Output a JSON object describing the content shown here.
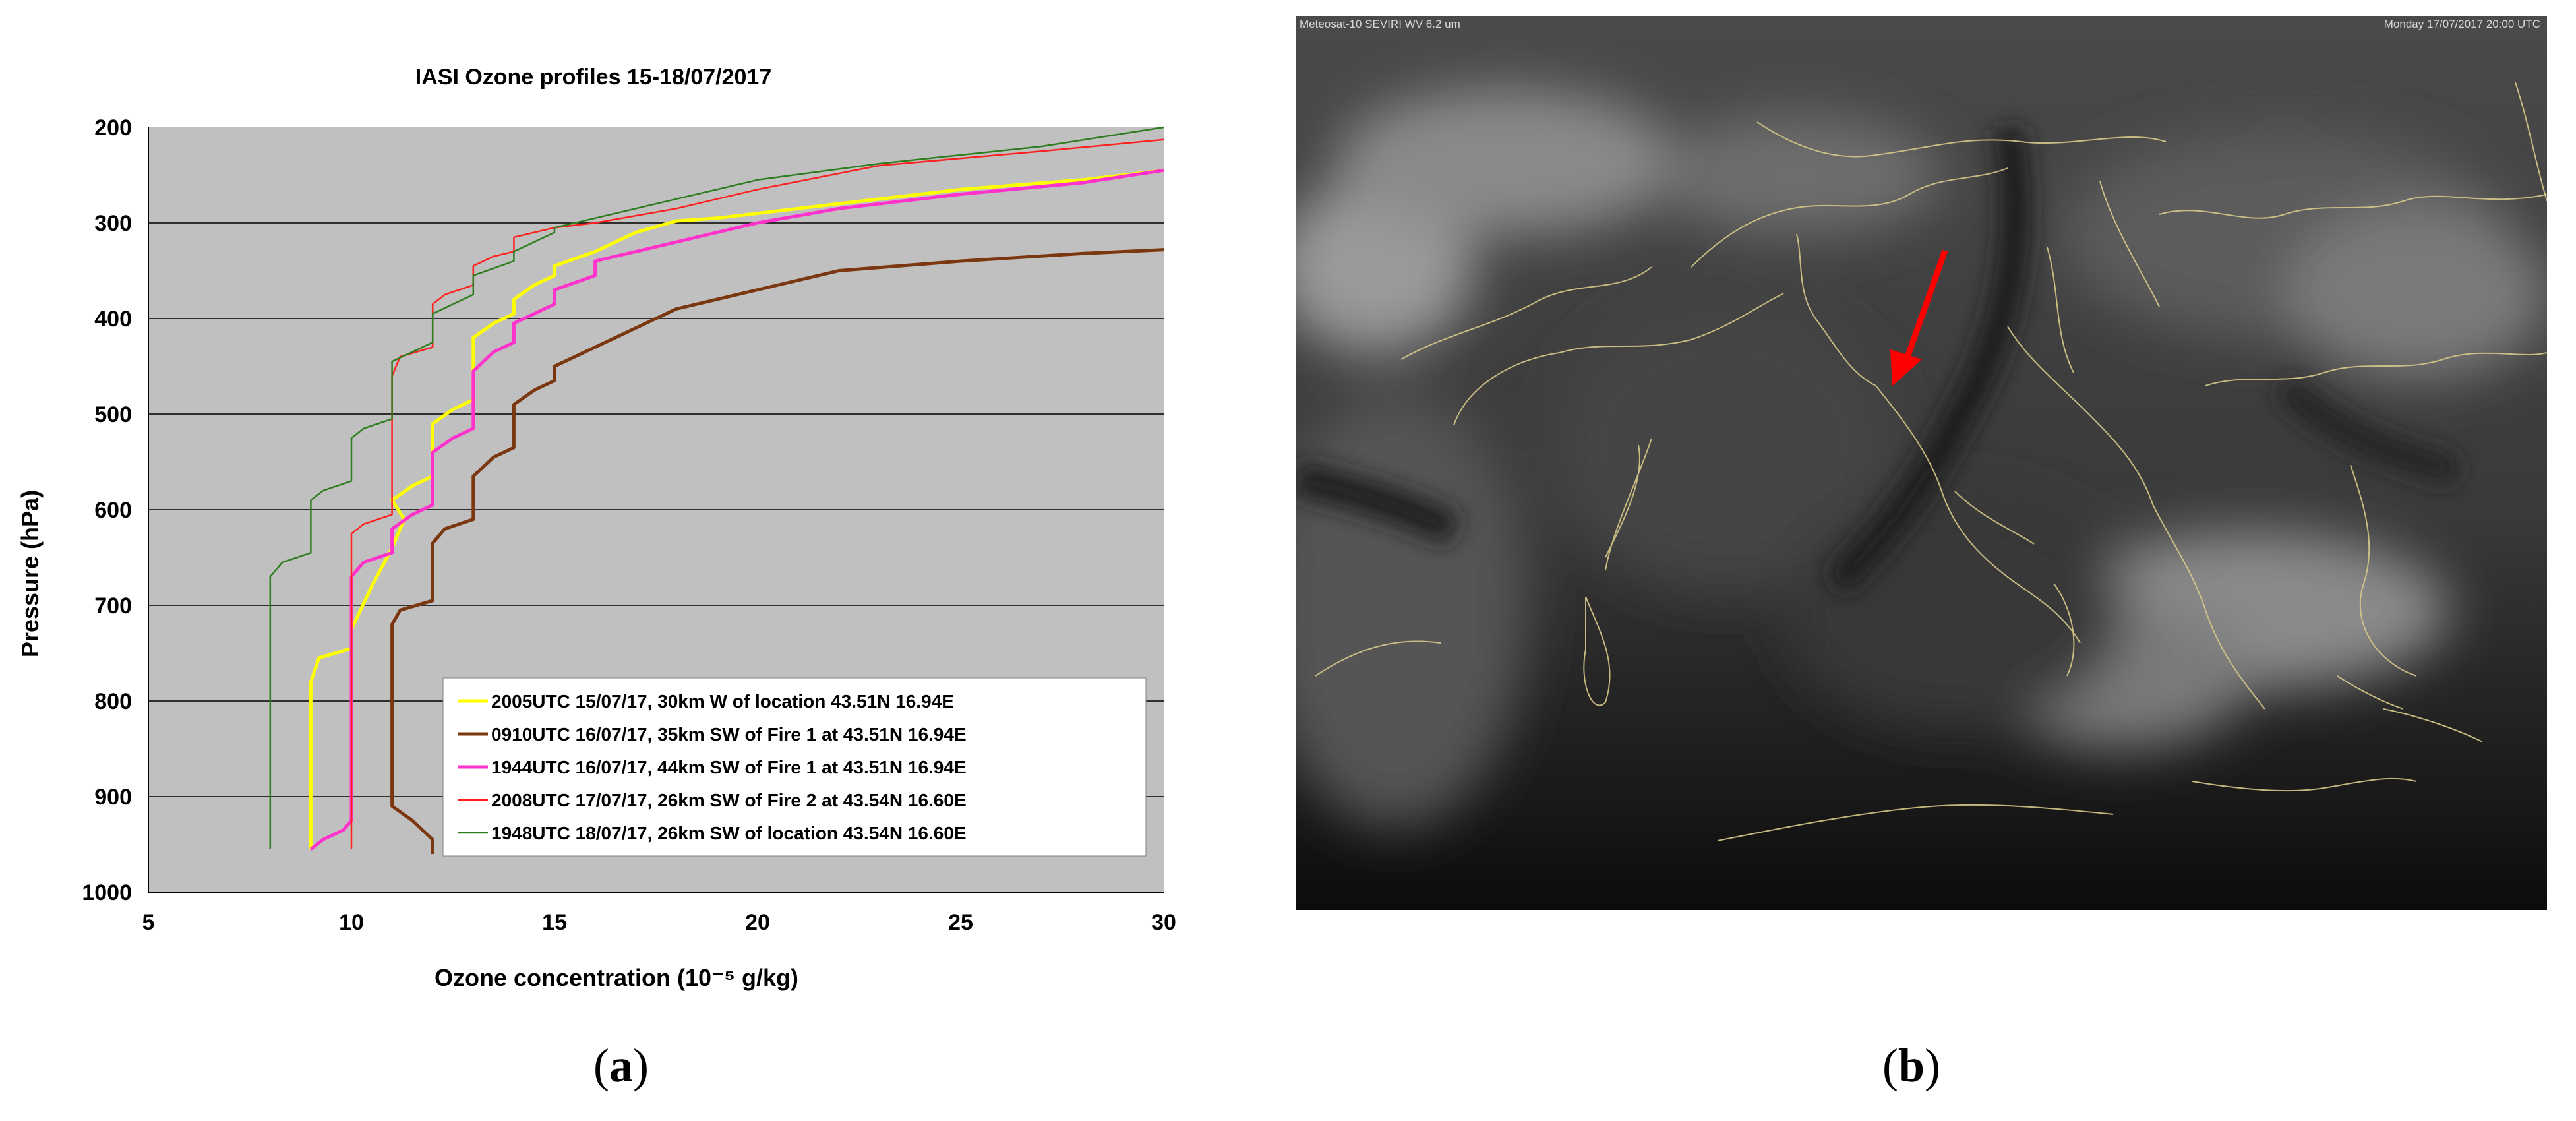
{
  "panels": {
    "a_label": "a",
    "b_label": "b"
  },
  "chart_data": {
    "type": "line",
    "title": "IASI Ozone profiles 15-18/07/2017",
    "xlabel": "Ozone concentration (10⁻⁵ g/kg)",
    "ylabel": "Pressure (hPa)",
    "xlim": [
      5,
      30
    ],
    "ylim": [
      200,
      1000
    ],
    "y_inverted": true,
    "xticks": [
      5,
      10,
      15,
      20,
      25,
      30
    ],
    "yticks": [
      200,
      300,
      400,
      500,
      600,
      700,
      800,
      900,
      1000
    ],
    "grid": "horizontal",
    "plot_background": "#c0c0c0",
    "legend_position": "bottom-right",
    "series": [
      {
        "name": "2005UTC 15/07/17, 30km  W of location 43.51N 16.94E",
        "color": "#ffff00",
        "points": [
          [
            9,
            955
          ],
          [
            9,
            780
          ],
          [
            9.2,
            755
          ],
          [
            10,
            745
          ],
          [
            10,
            725
          ],
          [
            10.5,
            680
          ],
          [
            11,
            640
          ],
          [
            11.3,
            610
          ],
          [
            11,
            590
          ],
          [
            11.5,
            575
          ],
          [
            12,
            565
          ],
          [
            12,
            510
          ],
          [
            12.5,
            495
          ],
          [
            13,
            485
          ],
          [
            13,
            420
          ],
          [
            13.5,
            405
          ],
          [
            14,
            395
          ],
          [
            14,
            380
          ],
          [
            14.5,
            365
          ],
          [
            15,
            355
          ],
          [
            15,
            345
          ],
          [
            16,
            330
          ],
          [
            17,
            310
          ],
          [
            18,
            298
          ],
          [
            19,
            295
          ],
          [
            22,
            280
          ],
          [
            25,
            265
          ],
          [
            28,
            255
          ],
          [
            30,
            245
          ]
        ]
      },
      {
        "name": "0910UTC 16/07/17, 35km  SW of Fire 1 at  43.51N 16.94E",
        "color": "#7b3810",
        "points": [
          [
            12,
            960
          ],
          [
            12,
            945
          ],
          [
            11.5,
            925
          ],
          [
            11,
            910
          ],
          [
            11,
            720
          ],
          [
            11.2,
            705
          ],
          [
            12,
            695
          ],
          [
            12,
            635
          ],
          [
            12.3,
            620
          ],
          [
            13,
            610
          ],
          [
            13,
            565
          ],
          [
            13.5,
            545
          ],
          [
            14,
            535
          ],
          [
            14,
            490
          ],
          [
            14.5,
            475
          ],
          [
            15,
            465
          ],
          [
            15,
            450
          ],
          [
            16,
            430
          ],
          [
            17,
            410
          ],
          [
            18,
            390
          ],
          [
            20,
            370
          ],
          [
            22,
            350
          ],
          [
            25,
            340
          ],
          [
            28,
            332
          ],
          [
            30,
            328
          ]
        ]
      },
      {
        "name": "1944UTC 16/07/17, 44km SW of Fire 1 at  43.51N 16.94E",
        "color": "#ff33cc",
        "points": [
          [
            9,
            955
          ],
          [
            9.3,
            945
          ],
          [
            9.8,
            935
          ],
          [
            10,
            925
          ],
          [
            10,
            670
          ],
          [
            10.3,
            655
          ],
          [
            11,
            645
          ],
          [
            11,
            620
          ],
          [
            11.5,
            605
          ],
          [
            12,
            595
          ],
          [
            12,
            540
          ],
          [
            12.5,
            525
          ],
          [
            13,
            515
          ],
          [
            13,
            455
          ],
          [
            13.5,
            435
          ],
          [
            14,
            425
          ],
          [
            14,
            405
          ],
          [
            15,
            385
          ],
          [
            15,
            370
          ],
          [
            16,
            355
          ],
          [
            16,
            340
          ],
          [
            17,
            330
          ],
          [
            18,
            320
          ],
          [
            19,
            310
          ],
          [
            20,
            300
          ],
          [
            22,
            285
          ],
          [
            25,
            270
          ],
          [
            28,
            258
          ],
          [
            30,
            245
          ]
        ]
      },
      {
        "name": "2008UTC 17/07/17, 26km SW of Fire 2 at  43.54N 16.60E",
        "color": "#ff2020",
        "points": [
          [
            10,
            955
          ],
          [
            10,
            625
          ],
          [
            10.3,
            615
          ],
          [
            11,
            605
          ],
          [
            11,
            460
          ],
          [
            11.2,
            440
          ],
          [
            12,
            430
          ],
          [
            12,
            385
          ],
          [
            12.3,
            375
          ],
          [
            13,
            365
          ],
          [
            13,
            345
          ],
          [
            13.5,
            335
          ],
          [
            14,
            330
          ],
          [
            14,
            315
          ],
          [
            15,
            305
          ],
          [
            16,
            300
          ],
          [
            18,
            285
          ],
          [
            20,
            265
          ],
          [
            23,
            240
          ],
          [
            27,
            225
          ],
          [
            30,
            213
          ]
        ]
      },
      {
        "name": "1948UTC 18/07/17, 26km SW of location 43.54N 16.60E",
        "color": "#2e7d1e",
        "points": [
          [
            8,
            955
          ],
          [
            8,
            670
          ],
          [
            8.3,
            655
          ],
          [
            9,
            645
          ],
          [
            9,
            590
          ],
          [
            9.3,
            580
          ],
          [
            10,
            570
          ],
          [
            10,
            525
          ],
          [
            10.3,
            515
          ],
          [
            11,
            505
          ],
          [
            11,
            445
          ],
          [
            11.5,
            435
          ],
          [
            12,
            425
          ],
          [
            12,
            395
          ],
          [
            12.5,
            385
          ],
          [
            13,
            375
          ],
          [
            13,
            355
          ],
          [
            14,
            340
          ],
          [
            14,
            330
          ],
          [
            15,
            310
          ],
          [
            15,
            305
          ],
          [
            17,
            285
          ],
          [
            18,
            275
          ],
          [
            20,
            255
          ],
          [
            23,
            238
          ],
          [
            27,
            220
          ],
          [
            30,
            200
          ]
        ]
      }
    ]
  },
  "satellite": {
    "header_left": "Meteosat-10 SEVIRI WV 6.2 um",
    "header_right": "Monday 17/07/2017 20:00 UTC",
    "arrow_color": "#ff0000"
  }
}
